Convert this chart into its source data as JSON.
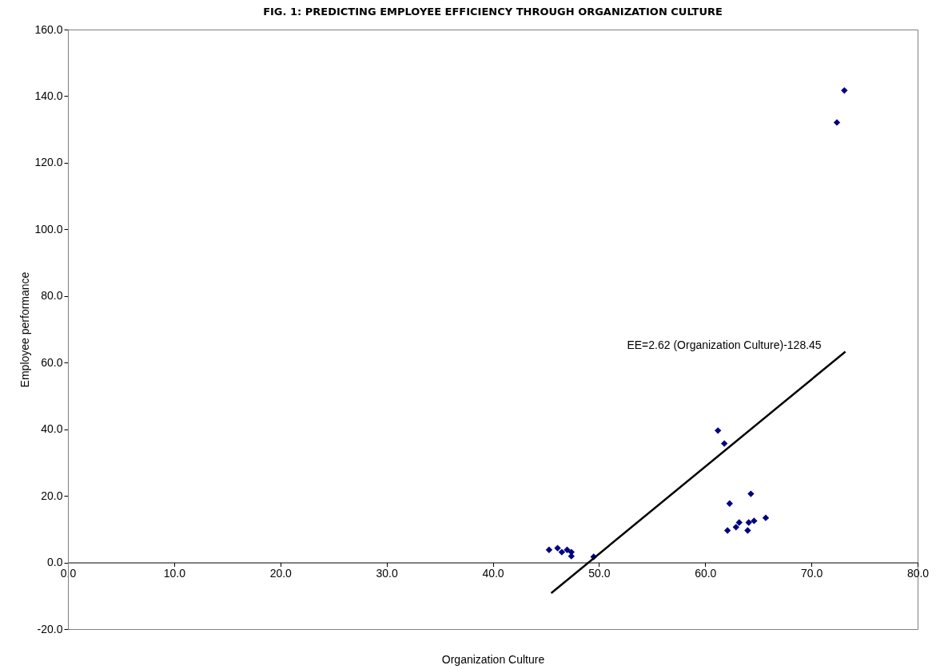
{
  "chart_data": {
    "type": "scatter",
    "title": "FIG. 1: PREDICTING EMPLOYEE EFFICIENCY THROUGH ORGANIZATION CULTURE",
    "xlabel": "Organization Culture",
    "ylabel": "Employee performance",
    "xlim": [
      0,
      80
    ],
    "ylim": [
      -20,
      160
    ],
    "xticks": [
      {
        "value": 0,
        "label": "0.0"
      },
      {
        "value": 10,
        "label": "10.0"
      },
      {
        "value": 20,
        "label": "20.0"
      },
      {
        "value": 30,
        "label": "30.0"
      },
      {
        "value": 40,
        "label": "40.0"
      },
      {
        "value": 50,
        "label": "50.0"
      },
      {
        "value": 60,
        "label": "60.0"
      },
      {
        "value": 70,
        "label": "70.0"
      },
      {
        "value": 80,
        "label": "80.0"
      }
    ],
    "yticks": [
      {
        "value": -20,
        "label": "-20.0"
      },
      {
        "value": 0,
        "label": "0.0"
      },
      {
        "value": 20,
        "label": "20.0"
      },
      {
        "value": 40,
        "label": "40.0"
      },
      {
        "value": 60,
        "label": "60.0"
      },
      {
        "value": 80,
        "label": "80.0"
      },
      {
        "value": 100,
        "label": "100.0"
      },
      {
        "value": 120,
        "label": "120.0"
      },
      {
        "value": 140,
        "label": "140.0"
      },
      {
        "value": 160,
        "label": "160.0"
      }
    ],
    "grid": false,
    "series": [
      {
        "type": "scatter",
        "color": "#000080",
        "marker": "diamond",
        "x": [
          45.3,
          46.1,
          46.5,
          47.0,
          47.4,
          47.4,
          49.5,
          61.2,
          61.8,
          64.3,
          62.3,
          65.7,
          64.6,
          64.1,
          63.2,
          62.9,
          62.1,
          64.0,
          73.1,
          72.4
        ],
        "values": [
          3.8,
          4.3,
          3.1,
          3.8,
          3.1,
          1.9,
          1.7,
          39.6,
          35.7,
          20.6,
          17.7,
          13.4,
          12.5,
          12.0,
          12.0,
          10.6,
          9.6,
          9.6,
          141.7,
          132.1
        ]
      },
      {
        "type": "line",
        "color": "#000000",
        "line_style": "solid",
        "x": [
          45.5,
          73.2
        ],
        "values": [
          -9.2,
          63.3
        ]
      }
    ],
    "annotations": [
      "EE=2.62 (Organization Culture)-128.45"
    ]
  }
}
